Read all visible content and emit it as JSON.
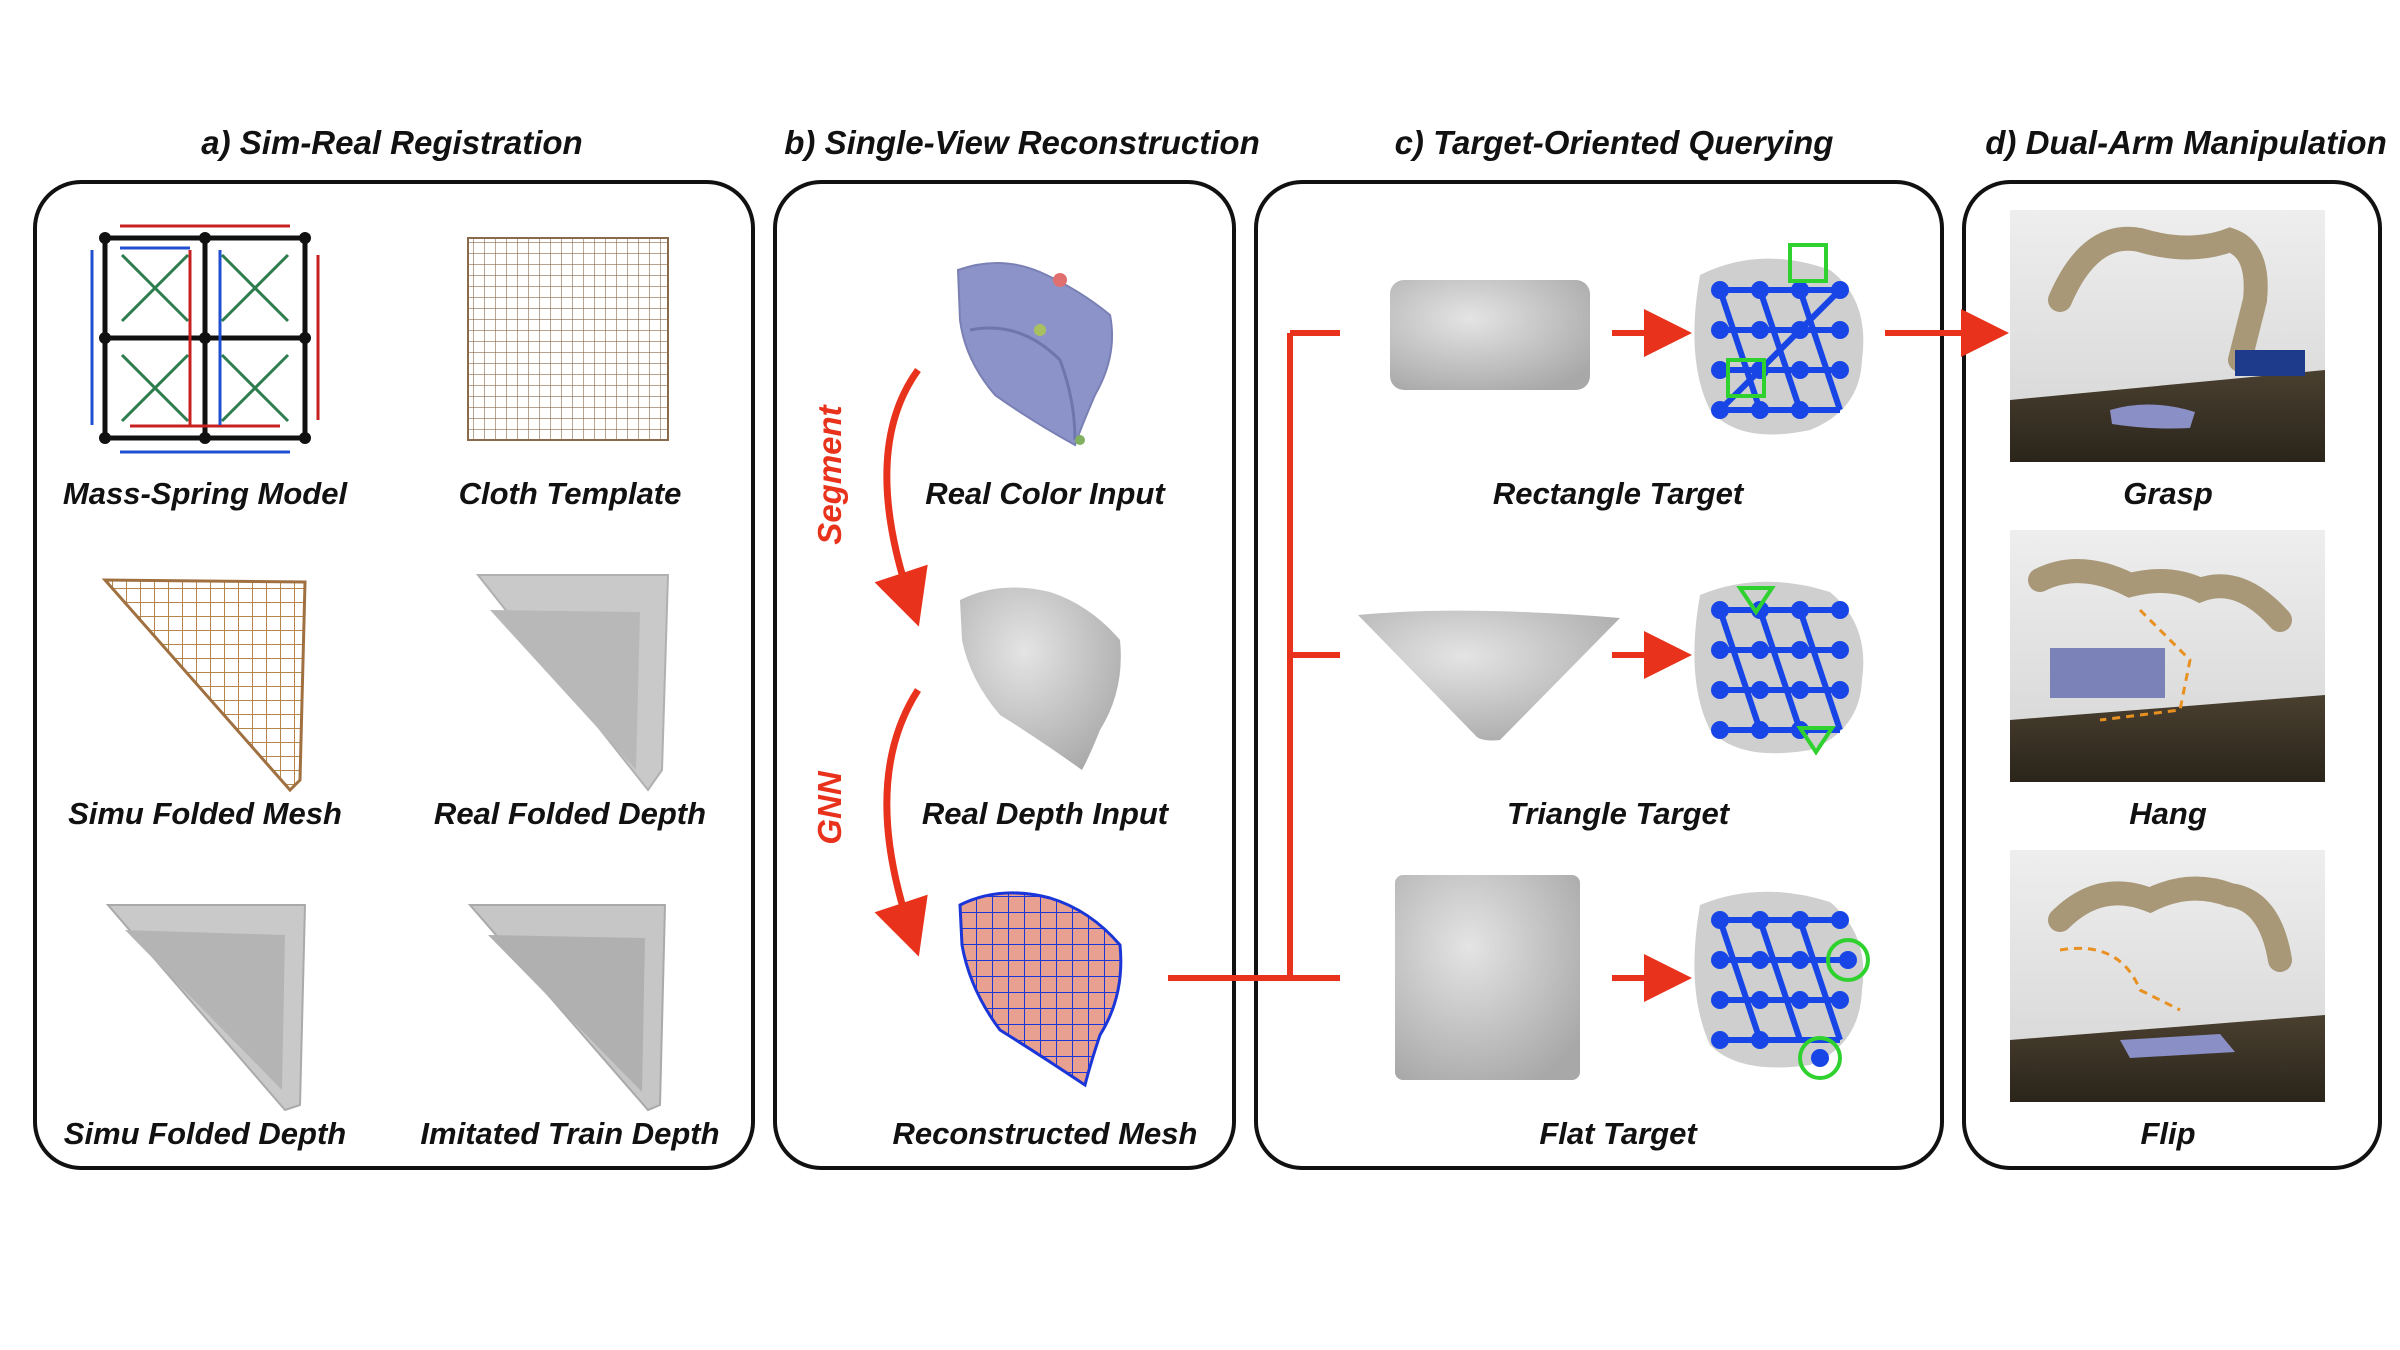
{
  "sections": {
    "a": {
      "title": "a) Sim-Real Registration",
      "captions": [
        "Mass-Spring Model",
        "Cloth Template",
        "Simu Folded Mesh",
        "Real Folded Depth",
        "Simu Folded Depth",
        "Imitated Train Depth"
      ]
    },
    "b": {
      "title": "b) Single-View Reconstruction",
      "captions": [
        "Real Color Input",
        "Real Depth Input",
        "Reconstructed Mesh"
      ],
      "arrow_labels": [
        "Segment",
        "GNN"
      ]
    },
    "c": {
      "title": "c) Target-Oriented Querying",
      "captions": [
        "Rectangle Target",
        "Triangle Target",
        "Flat Target"
      ]
    },
    "d": {
      "title": "d) Dual-Arm Manipulation",
      "captions": [
        "Grasp",
        "Hang",
        "Flip"
      ]
    }
  },
  "colors": {
    "arrow": "#e8321c",
    "node_blue": "#1846e6",
    "marker_green": "#2fd12f",
    "depth_gray": "#bdbdbd",
    "panel_border": "#111111"
  }
}
